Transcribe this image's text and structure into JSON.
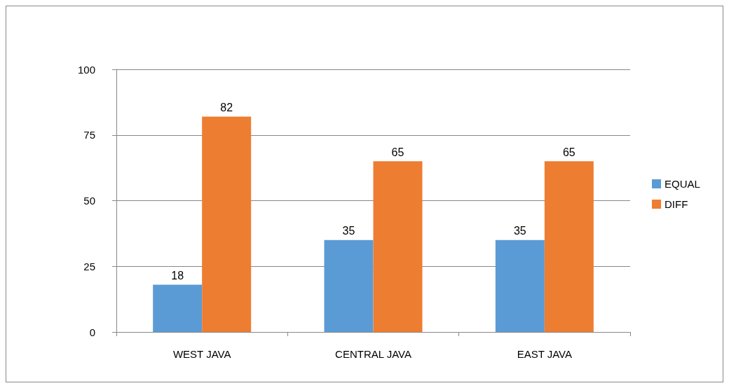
{
  "chart_data": {
    "type": "bar",
    "categories": [
      "WEST JAVA",
      "CENTRAL JAVA",
      "EAST JAVA"
    ],
    "series": [
      {
        "name": "EQUAL",
        "color": "#5b9bd5",
        "values": [
          18,
          35,
          35
        ]
      },
      {
        "name": "DIFF",
        "color": "#ed7d31",
        "values": [
          82,
          65,
          65
        ]
      }
    ],
    "ylim": [
      0,
      100
    ],
    "yticks": [
      0,
      25,
      50,
      75,
      100
    ],
    "grid": "y",
    "legend": "right",
    "data_labels": true
  }
}
